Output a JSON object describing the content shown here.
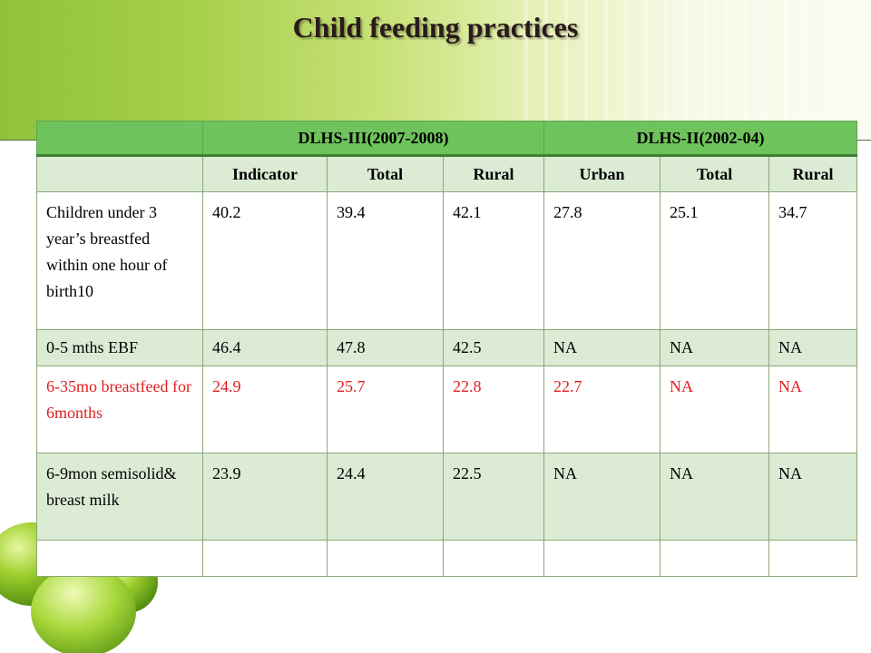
{
  "slide": {
    "title": "Child feeding practices"
  },
  "table": {
    "group_headers": [
      "",
      "DLHS-III(2007-2008)",
      "DLHS-II(2002-04)"
    ],
    "column_headers": [
      "",
      "Indicator",
      "Total",
      "Rural",
      "Urban",
      "Total",
      "Rural"
    ],
    "rows": [
      {
        "label": "Children under 3 year’s breastfed within one hour of birth10",
        "values": [
          "40.2",
          "39.4",
          "42.1",
          "27.8",
          "25.1",
          "34.7"
        ]
      },
      {
        "label": "0-5 mths EBF",
        "values": [
          "46.4",
          "47.8",
          "42.5",
          "NA",
          "NA",
          "NA"
        ]
      },
      {
        "label": "6-35mo breastfeed for 6months",
        "values": [
          "24.9",
          "25.7",
          "22.8",
          "22.7",
          "NA",
          "NA"
        ],
        "highlight_color": "#e02020"
      },
      {
        "label": "6-9mon semisolid& breast milk",
        "values": [
          "23.9",
          "24.4",
          "22.5",
          "NA",
          "NA",
          "NA"
        ]
      }
    ]
  },
  "colors": {
    "header_green": "#6fc35d",
    "band_green": "#dcebd4",
    "highlight_red": "#e02020"
  }
}
